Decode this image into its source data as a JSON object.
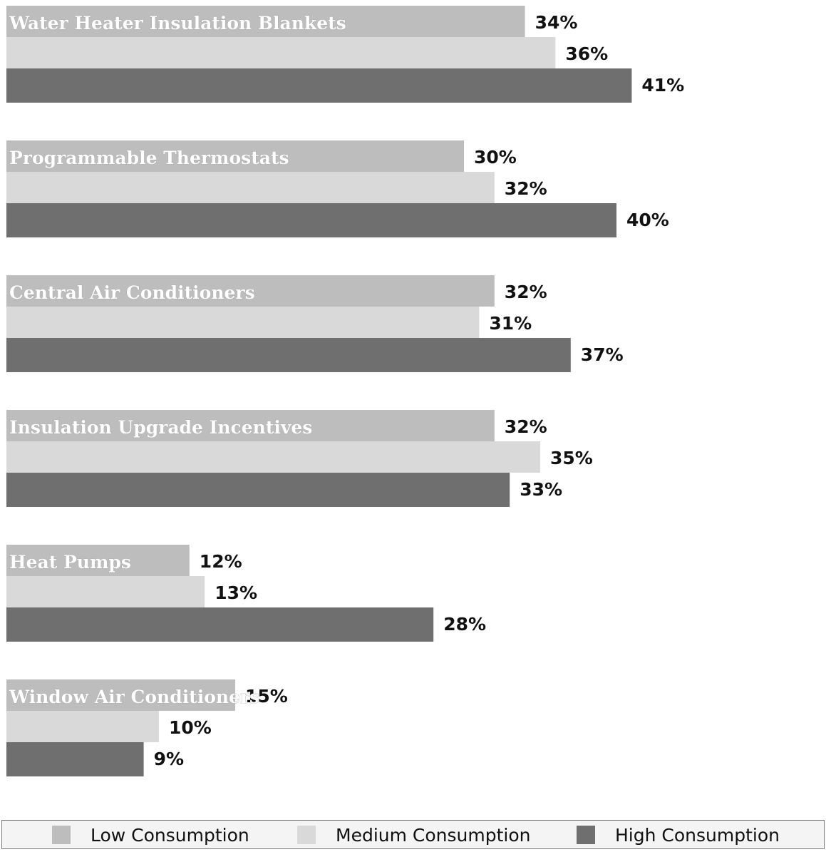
{
  "chart_data": {
    "type": "bar",
    "orientation": "horizontal",
    "categories": [
      "Water Heater Insulation Blankets",
      "Programmable Thermostats",
      "Central Air Conditioners",
      "Insulation Upgrade Incentives",
      "Heat Pumps",
      "Window Air Conditioners"
    ],
    "series": [
      {
        "name": "Low Consumption",
        "values": [
          34,
          30,
          32,
          32,
          12,
          15
        ],
        "labels": [
          "34%",
          "30%",
          "32%",
          "32%",
          "12%",
          "15%"
        ],
        "color": "#bdbdbd"
      },
      {
        "name": "Medium Consumption",
        "values": [
          36,
          32,
          31,
          35,
          13,
          10
        ],
        "labels": [
          "36%",
          "32%",
          "31%",
          "35%",
          "13%",
          "10%"
        ],
        "color": "#d9d9d9"
      },
      {
        "name": "High Consumption",
        "values": [
          41,
          40,
          37,
          33,
          28,
          9
        ],
        "labels": [
          "41%",
          "40%",
          "37%",
          "33%",
          "28%",
          "9%"
        ],
        "color": "#6f6f6f"
      }
    ],
    "value_unit": "%",
    "legend_placement": "bottom",
    "grid": false
  },
  "legend": {
    "items": [
      {
        "label": "Low Consumption",
        "color": "#bdbdbd"
      },
      {
        "label": "Medium Consumption",
        "color": "#d9d9d9"
      },
      {
        "label": "High Consumption",
        "color": "#6f6f6f"
      }
    ]
  }
}
